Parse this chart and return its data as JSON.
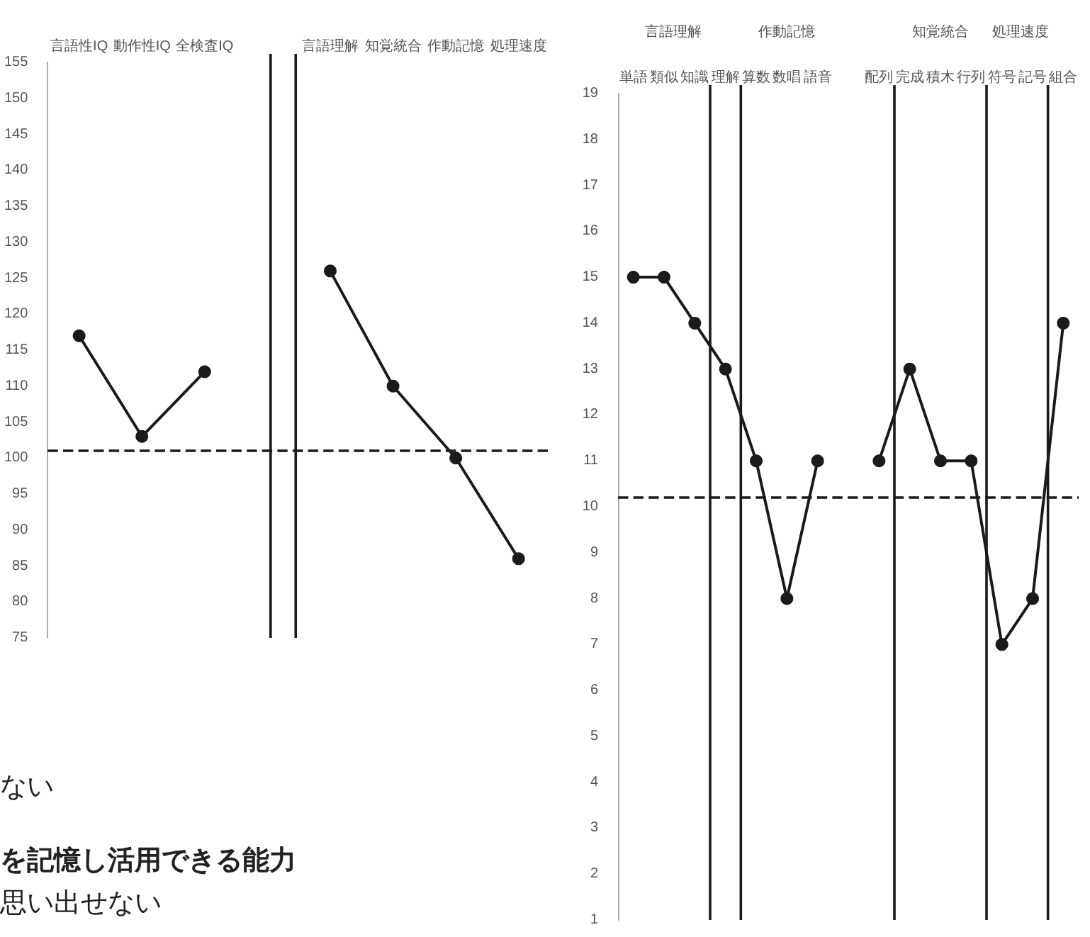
{
  "chart_data": [
    {
      "type": "line",
      "categories": [
        "言語性IQ",
        "動作性IQ",
        "全検査IQ",
        null,
        "言語理解",
        "知覚統合",
        "作動記憶",
        "処理速度"
      ],
      "series": [
        {
          "color": "#1a1a1a",
          "values": [
            117,
            103,
            112,
            null,
            126,
            110,
            100,
            86
          ]
        }
      ],
      "ylim": [
        75,
        155
      ],
      "yticks": [
        75,
        80,
        85,
        90,
        95,
        100,
        105,
        110,
        115,
        120,
        125,
        130,
        135,
        140,
        145,
        150,
        155
      ],
      "ref_lines": [
        {
          "axis": "y",
          "value": 101,
          "color": "#1a1a1a",
          "line_style": "dashed"
        }
      ],
      "annotations": [
        "ない",
        "を記憶し活用できる能力",
        "思い出せない"
      ],
      "marker": "circle",
      "line_style": "solid"
    },
    {
      "type": "line",
      "categories": [
        "単語",
        "類似",
        "知識",
        "理解",
        "算数",
        "数唱",
        "語音",
        null,
        "配列",
        "完成",
        "積木",
        "行列",
        "符号",
        "記号",
        "組合"
      ],
      "series": [
        {
          "color": "#1a1a1a",
          "values": [
            15,
            15,
            14,
            13,
            11,
            8,
            11,
            null,
            11,
            13,
            11,
            11,
            7,
            8,
            14
          ]
        }
      ],
      "ylim": [
        1,
        19
      ],
      "yticks": [
        1,
        2,
        3,
        4,
        5,
        6,
        7,
        8,
        9,
        10,
        11,
        12,
        13,
        14,
        15,
        16,
        17,
        18,
        19
      ],
      "ref_lines": [
        {
          "axis": "y",
          "value": 10.2,
          "color": "#1a1a1a",
          "line_style": "dashed"
        }
      ],
      "annotations": [
        "言語理解",
        "作動記憶",
        "知覚統合",
        "処理速度"
      ],
      "marker": "circle",
      "line_style": "solid"
    }
  ]
}
